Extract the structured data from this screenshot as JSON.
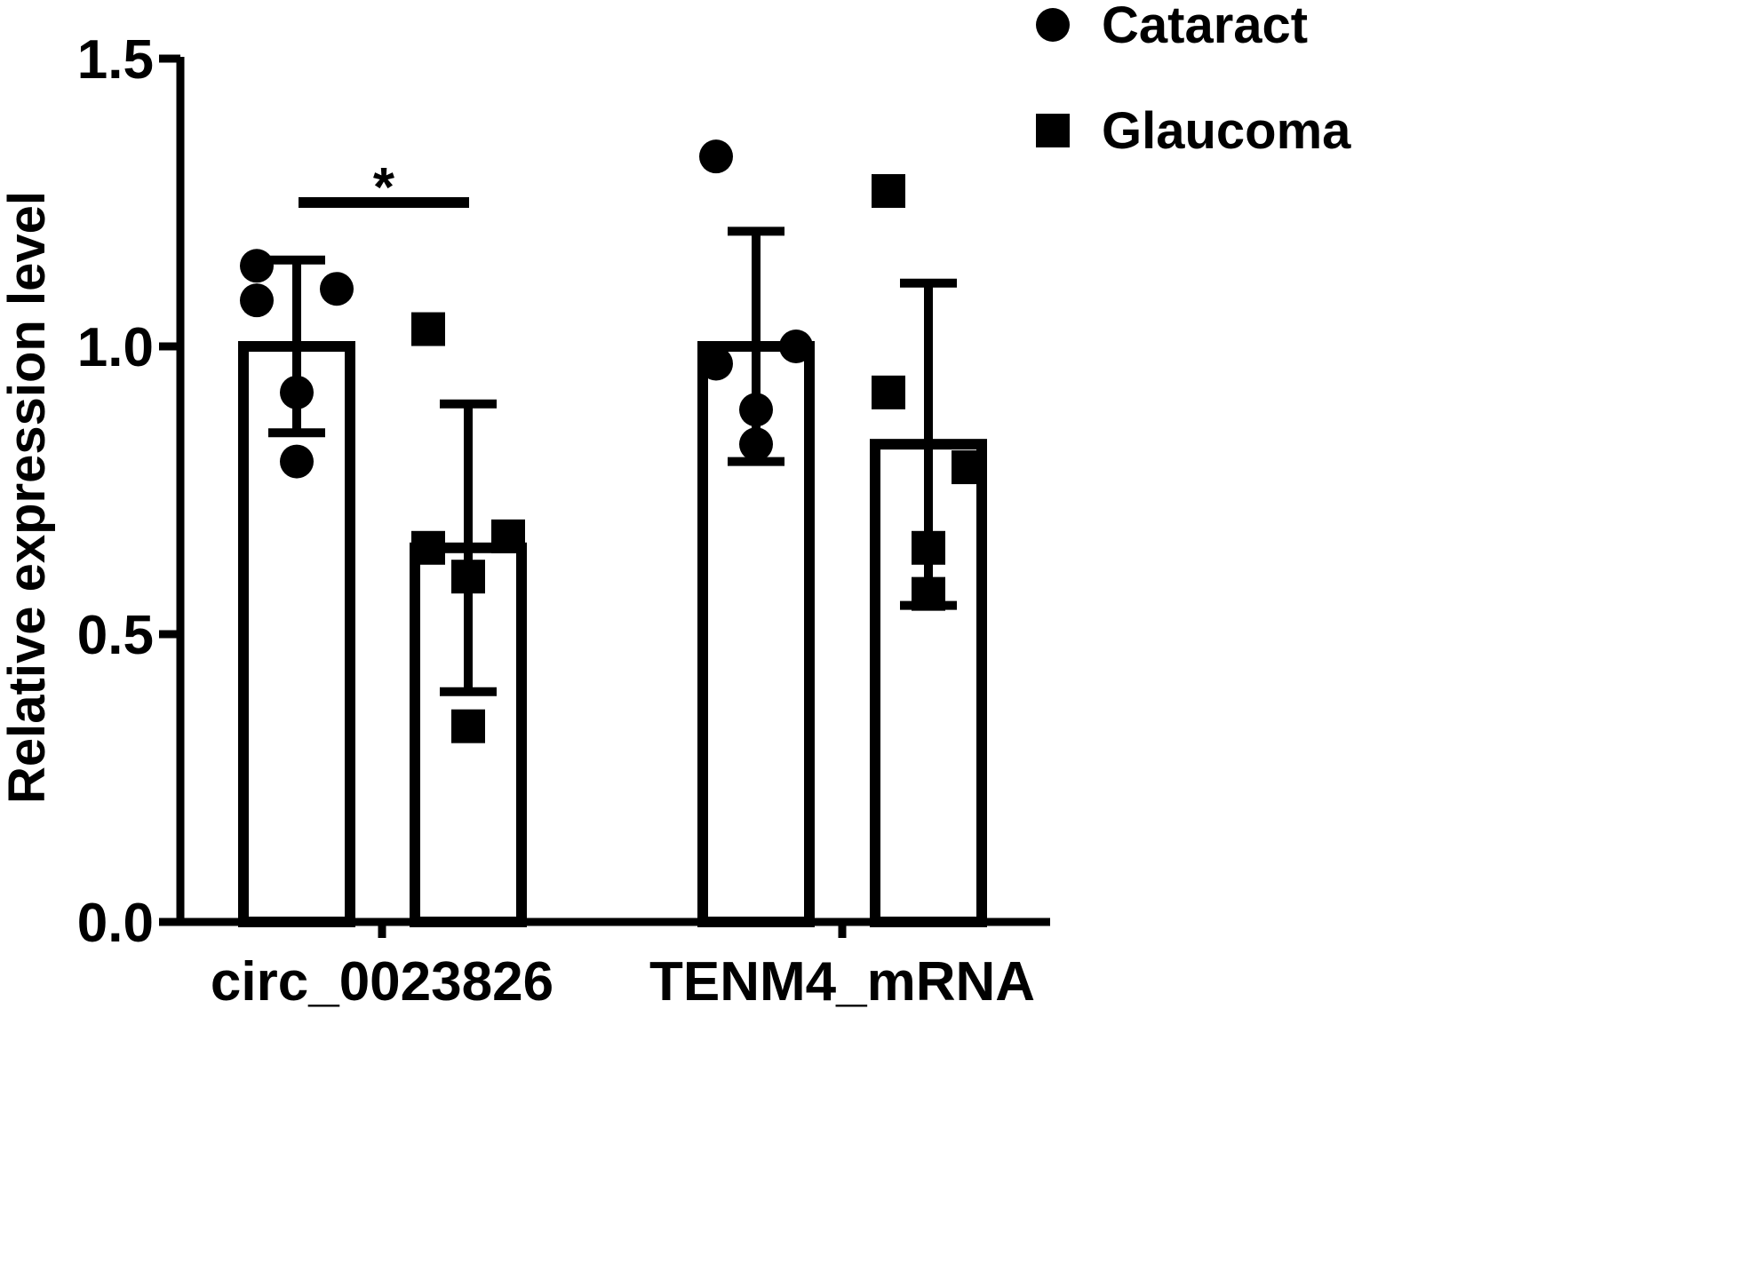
{
  "chart_data": {
    "type": "bar",
    "title": "",
    "xlabel": "",
    "ylabel": "Relative expression level",
    "ylim": [
      0,
      1.5
    ],
    "yticks": [
      "0.0",
      "0.5",
      "1.0",
      "1.5"
    ],
    "grid": false,
    "legend_position": "top-right",
    "categories": [
      "circ_0023826",
      "TENM4_mRNA"
    ],
    "series": [
      {
        "name": "Cataract",
        "marker": "circle",
        "values": [
          1.0,
          1.0
        ],
        "error": [
          0.15,
          0.2
        ],
        "points": [
          [
            1.14,
            1.08,
            1.1,
            0.92,
            0.8
          ],
          [
            1.33,
            0.97,
            1.0,
            0.89,
            0.83
          ]
        ]
      },
      {
        "name": "Glaucoma",
        "marker": "square",
        "values": [
          0.65,
          0.83
        ],
        "error": [
          0.25,
          0.28
        ],
        "points": [
          [
            1.03,
            0.65,
            0.67,
            0.6,
            0.34
          ],
          [
            1.27,
            0.92,
            0.79,
            0.65,
            0.57
          ]
        ]
      }
    ],
    "annotations": [
      {
        "label": "*",
        "between": [
          "circ_0023826 Cataract",
          "circ_0023826 Glaucoma"
        ],
        "y": 1.25
      }
    ]
  },
  "colors": {
    "ink": "#000000",
    "bar_fill": "#ffffff"
  }
}
